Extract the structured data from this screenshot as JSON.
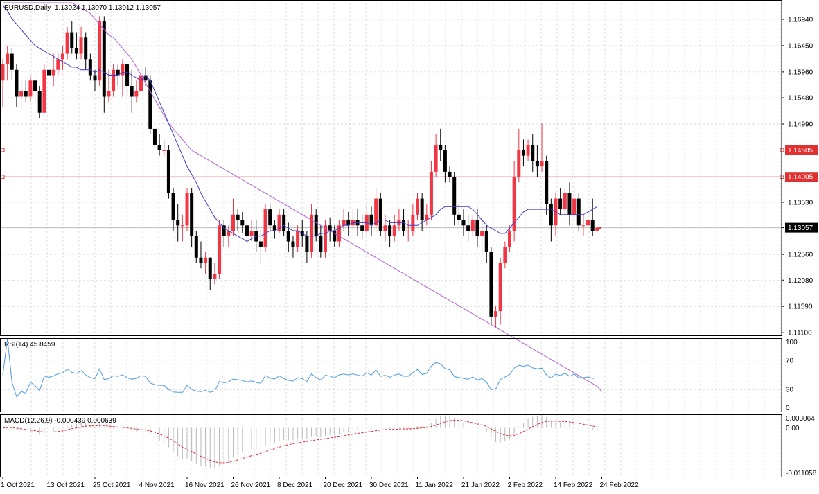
{
  "header": {
    "symbol_label": "EURUSD,Daily",
    "ohlc": "1.13024 1.13070 1.13012 1.13057"
  },
  "rsi_panel": {
    "label": "RSI(14) 45.8459",
    "levels": [
      "100",
      "70",
      "30",
      "0"
    ]
  },
  "macd_panel": {
    "label": "MACD(12,26,9) -0.000439 0.000639",
    "levels": [
      "0.003064",
      "0.00",
      "-0.011058"
    ]
  },
  "price_tags": {
    "resistance_high": "1.14505",
    "resistance_low": "1.14005",
    "current": "1.13057"
  },
  "colors": {
    "bull": "#f23645",
    "bear": "#000000",
    "ma_fast": "#3a3acd",
    "ma_slow": "#b15ad6",
    "rsi": "#4d9be0",
    "macd_signal": "#e0202a",
    "grid": "#c8c8c8",
    "level_line": "#e03030"
  },
  "chart_data": {
    "type": "candlestick",
    "price_axis": {
      "ticks": [
        "1.16940",
        "1.16450",
        "1.15960",
        "1.15480",
        "1.14990",
        "1.14505",
        "1.14005",
        "1.13530",
        "1.13057",
        "1.12560",
        "1.12080",
        "1.11590",
        "1.11100"
      ],
      "range": [
        1.1105,
        1.1725
      ]
    },
    "date_axis": {
      "labels": [
        "1 Oct 2021",
        "13 Oct 2021",
        "25 Oct 2021",
        "4 Nov 2021",
        "16 Nov 2021",
        "26 Nov 2021",
        "8 Dec 2021",
        "20 Dec 2021",
        "30 Dec 2021",
        "11 Jan 2022",
        "21 Jan 2022",
        "2 Feb 2022",
        "14 Feb 2022",
        "24 Feb 2022"
      ],
      "label_bar_index": [
        0,
        10,
        20,
        30,
        40,
        50,
        60,
        70,
        80,
        90,
        100,
        110,
        120,
        130
      ]
    },
    "horizontal_levels": [
      1.14505,
      1.14005
    ],
    "current_price": 1.13057,
    "candles": [
      [
        1.158,
        1.161,
        1.162,
        1.153
      ],
      [
        1.161,
        1.163,
        1.1645,
        1.158
      ],
      [
        1.163,
        1.16,
        1.164,
        1.158
      ],
      [
        1.16,
        1.155,
        1.161,
        1.153
      ],
      [
        1.155,
        1.156,
        1.158,
        1.153
      ],
      [
        1.156,
        1.155,
        1.158,
        1.154
      ],
      [
        1.155,
        1.158,
        1.159,
        1.154
      ],
      [
        1.158,
        1.156,
        1.159,
        1.154
      ],
      [
        1.156,
        1.152,
        1.157,
        1.151
      ],
      [
        1.152,
        1.16,
        1.161,
        1.152
      ],
      [
        1.16,
        1.159,
        1.162,
        1.158
      ],
      [
        1.159,
        1.16,
        1.163,
        1.157
      ],
      [
        1.16,
        1.162,
        1.163,
        1.159
      ],
      [
        1.162,
        1.163,
        1.1645,
        1.16
      ],
      [
        1.163,
        1.167,
        1.168,
        1.162
      ],
      [
        1.167,
        1.164,
        1.169,
        1.163
      ],
      [
        1.164,
        1.163,
        1.167,
        1.162
      ],
      [
        1.163,
        1.166,
        1.168,
        1.162
      ],
      [
        1.166,
        1.162,
        1.167,
        1.16
      ],
      [
        1.162,
        1.159,
        1.163,
        1.158
      ],
      [
        1.159,
        1.158,
        1.16,
        1.156
      ],
      [
        1.158,
        1.169,
        1.17,
        1.157
      ],
      [
        1.169,
        1.155,
        1.17,
        1.152
      ],
      [
        1.155,
        1.156,
        1.16,
        1.154
      ],
      [
        1.156,
        1.16,
        1.161,
        1.155
      ],
      [
        1.16,
        1.159,
        1.161,
        1.157
      ],
      [
        1.159,
        1.161,
        1.162,
        1.155
      ],
      [
        1.161,
        1.157,
        1.161,
        1.155
      ],
      [
        1.157,
        1.155,
        1.16,
        1.152
      ],
      [
        1.155,
        1.156,
        1.158,
        1.154
      ],
      [
        1.156,
        1.159,
        1.16,
        1.155
      ],
      [
        1.159,
        1.158,
        1.1605,
        1.157
      ],
      [
        1.158,
        1.149,
        1.159,
        1.148
      ],
      [
        1.149,
        1.146,
        1.1495,
        1.1455
      ],
      [
        1.146,
        1.145,
        1.148,
        1.144
      ],
      [
        1.145,
        1.145,
        1.147,
        1.144
      ],
      [
        1.145,
        1.137,
        1.146,
        1.136
      ],
      [
        1.137,
        1.132,
        1.138,
        1.13
      ],
      [
        1.132,
        1.131,
        1.135,
        1.128
      ],
      [
        1.131,
        1.131,
        1.133,
        1.128
      ],
      [
        1.131,
        1.137,
        1.138,
        1.13
      ],
      [
        1.137,
        1.129,
        1.138,
        1.127
      ],
      [
        1.129,
        1.125,
        1.13,
        1.124
      ],
      [
        1.125,
        1.124,
        1.128,
        1.123
      ],
      [
        1.124,
        1.125,
        1.126,
        1.122
      ],
      [
        1.125,
        1.121,
        1.125,
        1.119
      ],
      [
        1.121,
        1.122,
        1.124,
        1.12
      ],
      [
        1.122,
        1.131,
        1.132,
        1.121
      ],
      [
        1.131,
        1.129,
        1.132,
        1.127
      ],
      [
        1.129,
        1.13,
        1.131,
        1.127
      ],
      [
        1.13,
        1.133,
        1.136,
        1.129
      ],
      [
        1.133,
        1.132,
        1.134,
        1.13
      ],
      [
        1.132,
        1.131,
        1.1335,
        1.1295
      ],
      [
        1.131,
        1.129,
        1.133,
        1.1285
      ],
      [
        1.129,
        1.13,
        1.132,
        1.128
      ],
      [
        1.13,
        1.128,
        1.132,
        1.126
      ],
      [
        1.128,
        1.127,
        1.13,
        1.124
      ],
      [
        1.127,
        1.134,
        1.135,
        1.126
      ],
      [
        1.134,
        1.131,
        1.135,
        1.13
      ],
      [
        1.131,
        1.13,
        1.132,
        1.1285
      ],
      [
        1.13,
        1.133,
        1.134,
        1.1295
      ],
      [
        1.133,
        1.13,
        1.134,
        1.129
      ],
      [
        1.13,
        1.128,
        1.1315,
        1.126
      ],
      [
        1.128,
        1.127,
        1.129,
        1.125
      ],
      [
        1.127,
        1.13,
        1.131,
        1.126
      ],
      [
        1.13,
        1.129,
        1.132,
        1.127
      ],
      [
        1.129,
        1.126,
        1.13,
        1.124
      ],
      [
        1.126,
        1.133,
        1.135,
        1.125
      ],
      [
        1.133,
        1.129,
        1.134,
        1.128
      ],
      [
        1.129,
        1.126,
        1.131,
        1.125
      ],
      [
        1.126,
        1.131,
        1.132,
        1.125
      ],
      [
        1.131,
        1.13,
        1.1325,
        1.128
      ],
      [
        1.13,
        1.128,
        1.131,
        1.127
      ],
      [
        1.128,
        1.131,
        1.132,
        1.127
      ],
      [
        1.131,
        1.132,
        1.134,
        1.13
      ],
      [
        1.132,
        1.131,
        1.1335,
        1.129
      ],
      [
        1.131,
        1.132,
        1.134,
        1.13
      ],
      [
        1.132,
        1.131,
        1.134,
        1.129
      ],
      [
        1.131,
        1.13,
        1.133,
        1.1285
      ],
      [
        1.13,
        1.133,
        1.135,
        1.129
      ],
      [
        1.133,
        1.131,
        1.1345,
        1.129
      ],
      [
        1.131,
        1.136,
        1.138,
        1.13
      ],
      [
        1.136,
        1.13,
        1.137,
        1.129
      ],
      [
        1.13,
        1.131,
        1.133,
        1.128
      ],
      [
        1.131,
        1.129,
        1.132,
        1.127
      ],
      [
        1.129,
        1.131,
        1.133,
        1.128
      ],
      [
        1.131,
        1.132,
        1.134,
        1.13
      ],
      [
        1.132,
        1.13,
        1.134,
        1.129
      ],
      [
        1.13,
        1.13,
        1.132,
        1.128
      ],
      [
        1.13,
        1.133,
        1.135,
        1.129
      ],
      [
        1.133,
        1.136,
        1.137,
        1.132
      ],
      [
        1.136,
        1.132,
        1.137,
        1.13
      ],
      [
        1.132,
        1.133,
        1.135,
        1.131
      ],
      [
        1.133,
        1.141,
        1.143,
        1.132
      ],
      [
        1.141,
        1.146,
        1.148,
        1.14
      ],
      [
        1.146,
        1.145,
        1.149,
        1.143
      ],
      [
        1.145,
        1.141,
        1.146,
        1.139
      ],
      [
        1.141,
        1.14,
        1.142,
        1.139
      ],
      [
        1.14,
        1.133,
        1.141,
        1.131
      ],
      [
        1.133,
        1.132,
        1.135,
        1.131
      ],
      [
        1.132,
        1.131,
        1.134,
        1.129
      ],
      [
        1.131,
        1.13,
        1.133,
        1.128
      ],
      [
        1.13,
        1.132,
        1.133,
        1.129
      ],
      [
        1.132,
        1.129,
        1.134,
        1.127
      ],
      [
        1.129,
        1.13,
        1.132,
        1.126
      ],
      [
        1.13,
        1.126,
        1.131,
        1.124
      ],
      [
        1.126,
        1.114,
        1.127,
        1.1125
      ],
      [
        1.114,
        1.115,
        1.116,
        1.112
      ],
      [
        1.115,
        1.124,
        1.125,
        1.1125
      ],
      [
        1.124,
        1.127,
        1.128,
        1.123
      ],
      [
        1.127,
        1.13,
        1.131,
        1.126
      ],
      [
        1.13,
        1.14,
        1.143,
        1.128
      ],
      [
        1.14,
        1.145,
        1.149,
        1.139
      ],
      [
        1.145,
        1.144,
        1.147,
        1.142
      ],
      [
        1.144,
        1.146,
        1.147,
        1.143
      ],
      [
        1.146,
        1.143,
        1.148,
        1.141
      ],
      [
        1.143,
        1.142,
        1.146,
        1.14
      ],
      [
        1.142,
        1.143,
        1.15,
        1.141
      ],
      [
        1.143,
        1.135,
        1.144,
        1.133
      ],
      [
        1.135,
        1.131,
        1.136,
        1.128
      ],
      [
        1.131,
        1.136,
        1.137,
        1.129
      ],
      [
        1.136,
        1.134,
        1.138,
        1.133
      ],
      [
        1.134,
        1.137,
        1.138,
        1.133
      ],
      [
        1.137,
        1.133,
        1.139,
        1.131
      ],
      [
        1.133,
        1.136,
        1.1385,
        1.132
      ],
      [
        1.136,
        1.131,
        1.137,
        1.13
      ],
      [
        1.131,
        1.131,
        1.133,
        1.129
      ],
      [
        1.131,
        1.132,
        1.134,
        1.129
      ],
      [
        1.132,
        1.13,
        1.136,
        1.129
      ],
      [
        1.13,
        1.1306,
        1.1307,
        1.1301
      ]
    ],
    "ma_fast": [
      1.172,
      1.171,
      1.1695,
      1.1685,
      1.1675,
      1.1665,
      1.1655,
      1.1645,
      1.164,
      1.1635,
      1.163,
      1.1625,
      1.162,
      1.1615,
      1.161,
      1.1605,
      1.1605,
      1.16,
      1.16,
      1.16,
      1.1595,
      1.16,
      1.1595,
      1.159,
      1.159,
      1.159,
      1.1595,
      1.1595,
      1.159,
      1.1585,
      1.158,
      1.159,
      1.158,
      1.156,
      1.154,
      1.152,
      1.15,
      1.148,
      1.146,
      1.144,
      1.142,
      1.1405,
      1.139,
      1.137,
      1.1355,
      1.134,
      1.1325,
      1.1315,
      1.1305,
      1.13,
      1.1295,
      1.129,
      1.1285,
      1.128,
      1.1285,
      1.129,
      1.129,
      1.1295,
      1.13,
      1.13,
      1.1305,
      1.131,
      1.1305,
      1.13,
      1.13,
      1.1295,
      1.129,
      1.129,
      1.129,
      1.1295,
      1.1295,
      1.13,
      1.13,
      1.1305,
      1.131,
      1.131,
      1.1315,
      1.1315,
      1.1315,
      1.1315,
      1.131,
      1.1315,
      1.132,
      1.132,
      1.1315,
      1.1315,
      1.1315,
      1.1315,
      1.131,
      1.131,
      1.131,
      1.1315,
      1.132,
      1.1325,
      1.133,
      1.134,
      1.1345,
      1.1345,
      1.1345,
      1.1345,
      1.1345,
      1.1345,
      1.134,
      1.133,
      1.132,
      1.131,
      1.1305,
      1.13,
      1.1295,
      1.1295,
      1.1305,
      1.1315,
      1.1325,
      1.1335,
      1.134,
      1.134,
      1.134,
      1.134,
      1.134,
      1.134,
      1.1335,
      1.133,
      1.133,
      1.133,
      1.133,
      1.133,
      1.133,
      1.1335,
      1.134,
      1.1345
    ],
    "ma_slow": [
      1.181,
      1.1805,
      1.18,
      1.1795,
      1.179,
      1.1785,
      1.178,
      1.1775,
      1.177,
      1.1765,
      1.176,
      1.175,
      1.174,
      1.1735,
      1.173,
      1.1725,
      1.172,
      1.1715,
      1.171,
      1.1705,
      1.1695,
      1.1685,
      1.1675,
      1.1665,
      1.166,
      1.165,
      1.164,
      1.163,
      1.162,
      1.1605,
      1.159,
      1.1575,
      1.156,
      1.1545,
      1.153,
      1.1515,
      1.15,
      1.149,
      1.148,
      1.147,
      1.146,
      1.145,
      1.1445,
      1.144,
      1.1435,
      1.143,
      1.1425,
      1.142,
      1.1415,
      1.141,
      1.1405,
      1.14,
      1.1395,
      1.139,
      1.1385,
      1.138,
      1.1375,
      1.137,
      1.1365,
      1.136,
      1.1355,
      1.135,
      1.1345,
      1.134,
      1.1335,
      1.133,
      1.1325,
      1.132,
      1.1315,
      1.131,
      1.1305,
      1.13,
      1.1295,
      1.129,
      1.1285,
      1.128,
      1.1275,
      1.127,
      1.1265,
      1.126,
      1.1255,
      1.125,
      1.1245,
      1.124,
      1.1235,
      1.123,
      1.1225,
      1.122,
      1.1215,
      1.121,
      1.1205,
      1.12,
      1.1195,
      1.119,
      1.1185,
      1.118,
      1.1175,
      1.117,
      1.1165,
      1.116,
      1.1155,
      1.115,
      1.1145,
      1.114,
      1.1135,
      1.113,
      1.1125,
      1.112,
      1.1115,
      1.111,
      1.1105,
      1.11,
      1.1095,
      1.109,
      1.1085,
      1.108,
      1.1075,
      1.107,
      1.1065,
      1.106,
      1.1055,
      1.105,
      1.1045,
      1.104,
      1.1035,
      1.103,
      1.1025,
      1.102,
      1.1015,
      1.101,
      1.1
    ]
  }
}
